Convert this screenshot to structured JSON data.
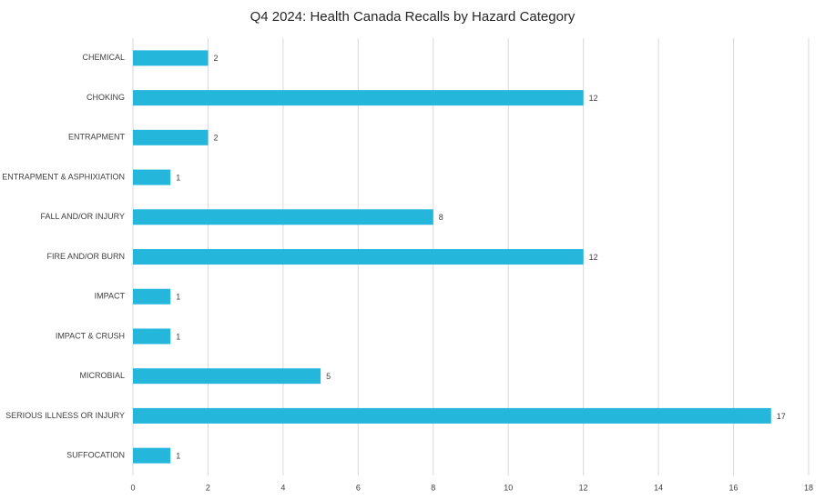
{
  "chart_data": {
    "type": "bar",
    "orientation": "horizontal",
    "title": "Q4 2024: Health Canada Recalls by Hazard Category",
    "categories": [
      "CHEMICAL",
      "CHOKING",
      "ENTRAPMENT",
      "ENTRAPMENT & ASPHIXIATION",
      "FALL AND/OR INJURY",
      "FIRE AND/OR BURN",
      "IMPACT",
      "IMPACT & CRUSH",
      "MICROBIAL",
      "SERIOUS ILLNESS OR INJURY",
      "SUFFOCATION"
    ],
    "values": [
      2,
      12,
      2,
      1,
      8,
      12,
      1,
      1,
      5,
      17,
      1
    ],
    "color": "#25b6dc",
    "xlim": [
      0,
      18
    ],
    "xticks": [
      0,
      2,
      4,
      6,
      8,
      10,
      12,
      14,
      16,
      18
    ],
    "grid": true
  }
}
